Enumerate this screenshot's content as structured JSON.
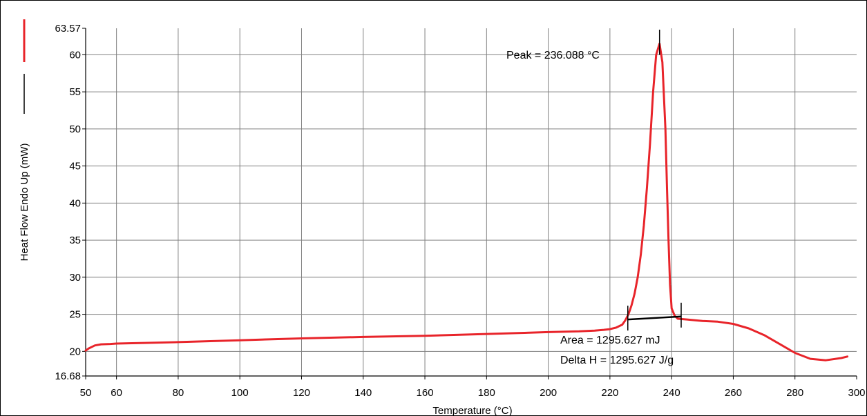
{
  "chart_data": {
    "type": "line",
    "title": "",
    "xlabel": "Temperature (°C)",
    "ylabel": "Heat Flow Endo Up (mW)",
    "xlim": [
      50,
      300
    ],
    "ylim": [
      16.68,
      63.57
    ],
    "x_ticks": [
      "50",
      "60",
      "80",
      "100",
      "120",
      "140",
      "160",
      "180",
      "200",
      "220",
      "240",
      "260",
      "280",
      "300"
    ],
    "y_ticks": [
      "16.68",
      "20",
      "25",
      "30",
      "35",
      "40",
      "45",
      "50",
      "55",
      "60",
      "63.57"
    ],
    "grid": true,
    "colors": {
      "curve": "#e8242a",
      "baseline": "#000000",
      "grid": "#808080"
    },
    "series": [
      {
        "x": [
          50,
          51,
          53,
          55,
          58,
          60,
          70,
          80,
          100,
          120,
          140,
          160,
          180,
          200,
          210,
          215,
          218,
          220,
          222,
          224,
          225,
          226,
          227,
          228,
          229,
          230,
          231,
          232,
          233,
          234,
          235,
          236.088,
          237,
          238,
          238.5,
          239,
          239.5,
          240,
          241,
          242,
          245,
          250,
          255,
          260,
          265,
          270,
          275,
          280,
          285,
          290,
          295,
          297
        ],
        "y": [
          20.1,
          20.4,
          20.8,
          20.95,
          21.0,
          21.05,
          21.15,
          21.25,
          21.5,
          21.75,
          21.95,
          22.1,
          22.35,
          22.6,
          22.7,
          22.8,
          22.9,
          23.0,
          23.2,
          23.6,
          24.2,
          25.0,
          26.2,
          27.8,
          30.0,
          33.0,
          37.0,
          42.0,
          48.0,
          55.0,
          60.0,
          61.5,
          59.0,
          50.0,
          42.0,
          35.0,
          29.0,
          25.8,
          24.8,
          24.4,
          24.3,
          24.1,
          24.0,
          23.7,
          23.1,
          22.2,
          21.0,
          19.8,
          19.0,
          18.8,
          19.1,
          19.3
        ]
      }
    ],
    "baseline": {
      "x": [
        225.8,
        243.1
      ],
      "y": [
        24.3,
        24.7
      ]
    },
    "peak": {
      "x": 236.088,
      "label": "Peak = 236.088 °C"
    },
    "annotations": {
      "area": "Area = 1295.627 mJ",
      "delta_h": "Delta H = 1295.627 J/g"
    }
  }
}
